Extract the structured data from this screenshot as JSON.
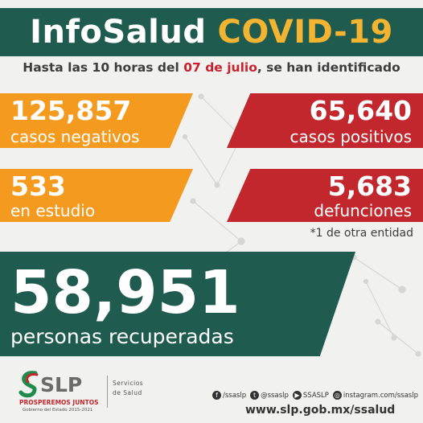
{
  "header": {
    "title_part1": "InfoSalud",
    "title_part2": "COVID-19"
  },
  "subtitle": {
    "before": "Hasta las 10 horas del ",
    "date": "07 de julio",
    "after": ", se han identificado"
  },
  "stats": {
    "negativos": {
      "value": "125,857",
      "label": "casos negativos"
    },
    "positivos": {
      "value": "65,640",
      "label": "casos positivos"
    },
    "estudio": {
      "value": "533",
      "label": "en estudio"
    },
    "defunciones": {
      "value": "5,683",
      "label": "defunciones"
    },
    "recuperadas": {
      "value": "58,951",
      "label": "personas recuperadas"
    }
  },
  "note": "*1 de otra entidad",
  "footer": {
    "logo_text": "SLP",
    "logo_slogan": "PROSPEREMOS JUNTOS",
    "logo_gov": "Gobierno del Estado 2015-2021",
    "dept_line1": "Servicios",
    "dept_line2": "de Salud",
    "socials": [
      {
        "icon": "facebook-icon",
        "glyph": "f",
        "text": "/ssaslp"
      },
      {
        "icon": "twitter-icon",
        "glyph": "t",
        "text": "@ssaslp"
      },
      {
        "icon": "youtube-icon",
        "glyph": "▶",
        "text": "SSASLP"
      },
      {
        "icon": "instagram-icon",
        "glyph": "◎",
        "text": "instagram.com/ssaslp"
      }
    ],
    "website": "www.slp.gob.mx/ssalud"
  },
  "colors": {
    "green": "#1f5b4f",
    "orange": "#f39a1f",
    "red": "#c1272d",
    "yellow": "#f2b431"
  }
}
